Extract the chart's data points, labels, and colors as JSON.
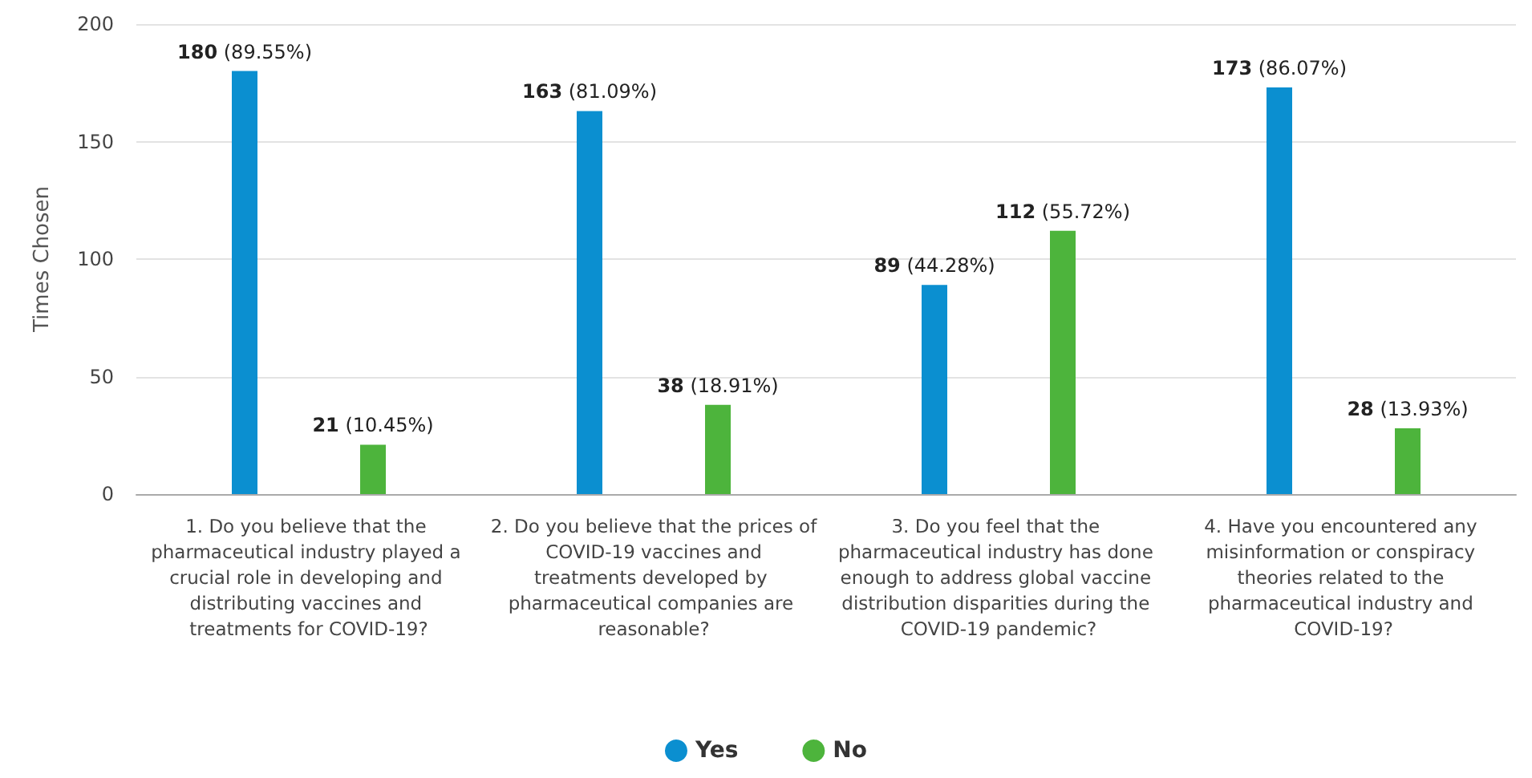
{
  "chart_data": {
    "type": "bar",
    "ylabel": "Times Chosen",
    "categories": [
      "1. Do you believe that the pharmaceutical industry played a crucial role in developing and distributing vaccines and treatments for COVID-19?",
      "2. Do you believe that the prices of COVID-19 vaccines and treatments developed by pharmaceutical companies are reasonable?",
      "3. Do you feel that the pharmaceutical industry has done enough to address global vaccine distribution disparities during the COVID-19 pandemic?",
      "4. Have you encountered any misinformation or conspiracy theories related to the pharmaceutical industry and COVID-19?"
    ],
    "series": [
      {
        "name": "Yes",
        "color": "#0b8fd0",
        "values": [
          180,
          163,
          89,
          173
        ],
        "value_labels": [
          "180 (89.55%)",
          "163 (81.09%)",
          "89 (44.28%)",
          "173 (86.07%)"
        ]
      },
      {
        "name": "No",
        "color": "#4db43c",
        "values": [
          21,
          38,
          112,
          28
        ],
        "value_labels": [
          "21 (10.45%)",
          "38 (18.91%)",
          "112 (55.72%)",
          "28 (13.93%)"
        ]
      }
    ],
    "ylim": [
      0,
      200
    ],
    "yticks": [
      0,
      50,
      100,
      150,
      200
    ],
    "grid": "y",
    "legend": "bottom"
  }
}
